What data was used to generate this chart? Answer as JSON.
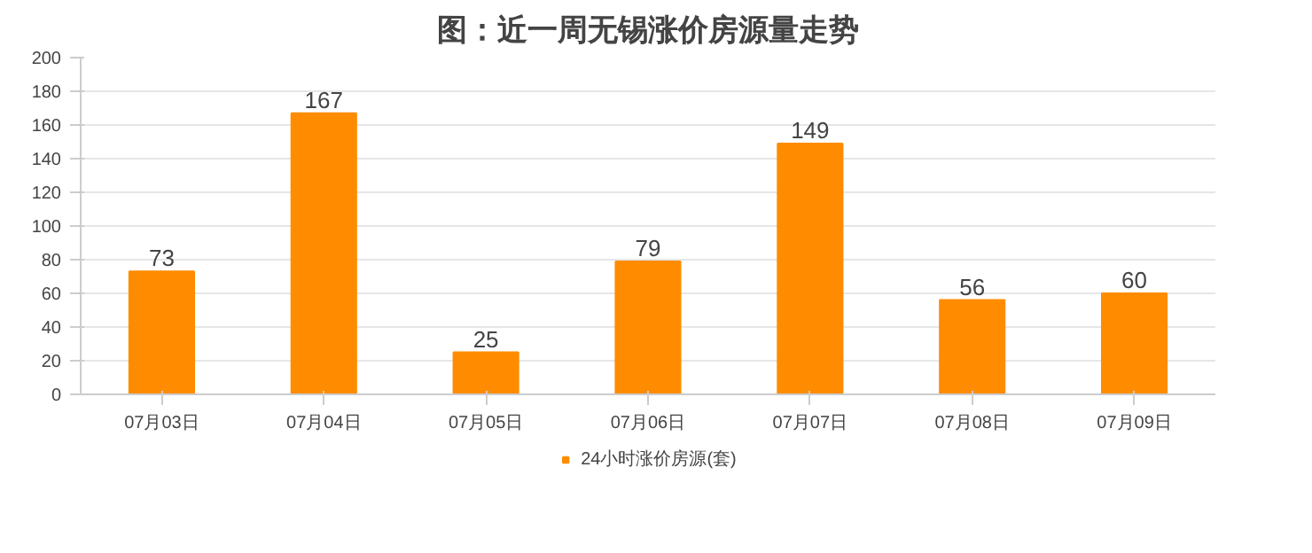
{
  "chart_data": {
    "type": "bar",
    "title": "图：近一周无锡涨价房源量走势",
    "categories": [
      "07月03日",
      "07月04日",
      "07月05日",
      "07月06日",
      "07月07日",
      "07月08日",
      "07月09日"
    ],
    "series": [
      {
        "name": "24小时涨价房源(套)",
        "color": "#ff8c00",
        "values": [
          73,
          167,
          25,
          79,
          149,
          56,
          60
        ]
      }
    ],
    "ylim": [
      0,
      200
    ],
    "yticks": [
      0,
      20,
      40,
      60,
      80,
      100,
      120,
      140,
      160,
      180,
      200
    ],
    "grid": "y",
    "legend": "bottom",
    "data_labels": true
  }
}
